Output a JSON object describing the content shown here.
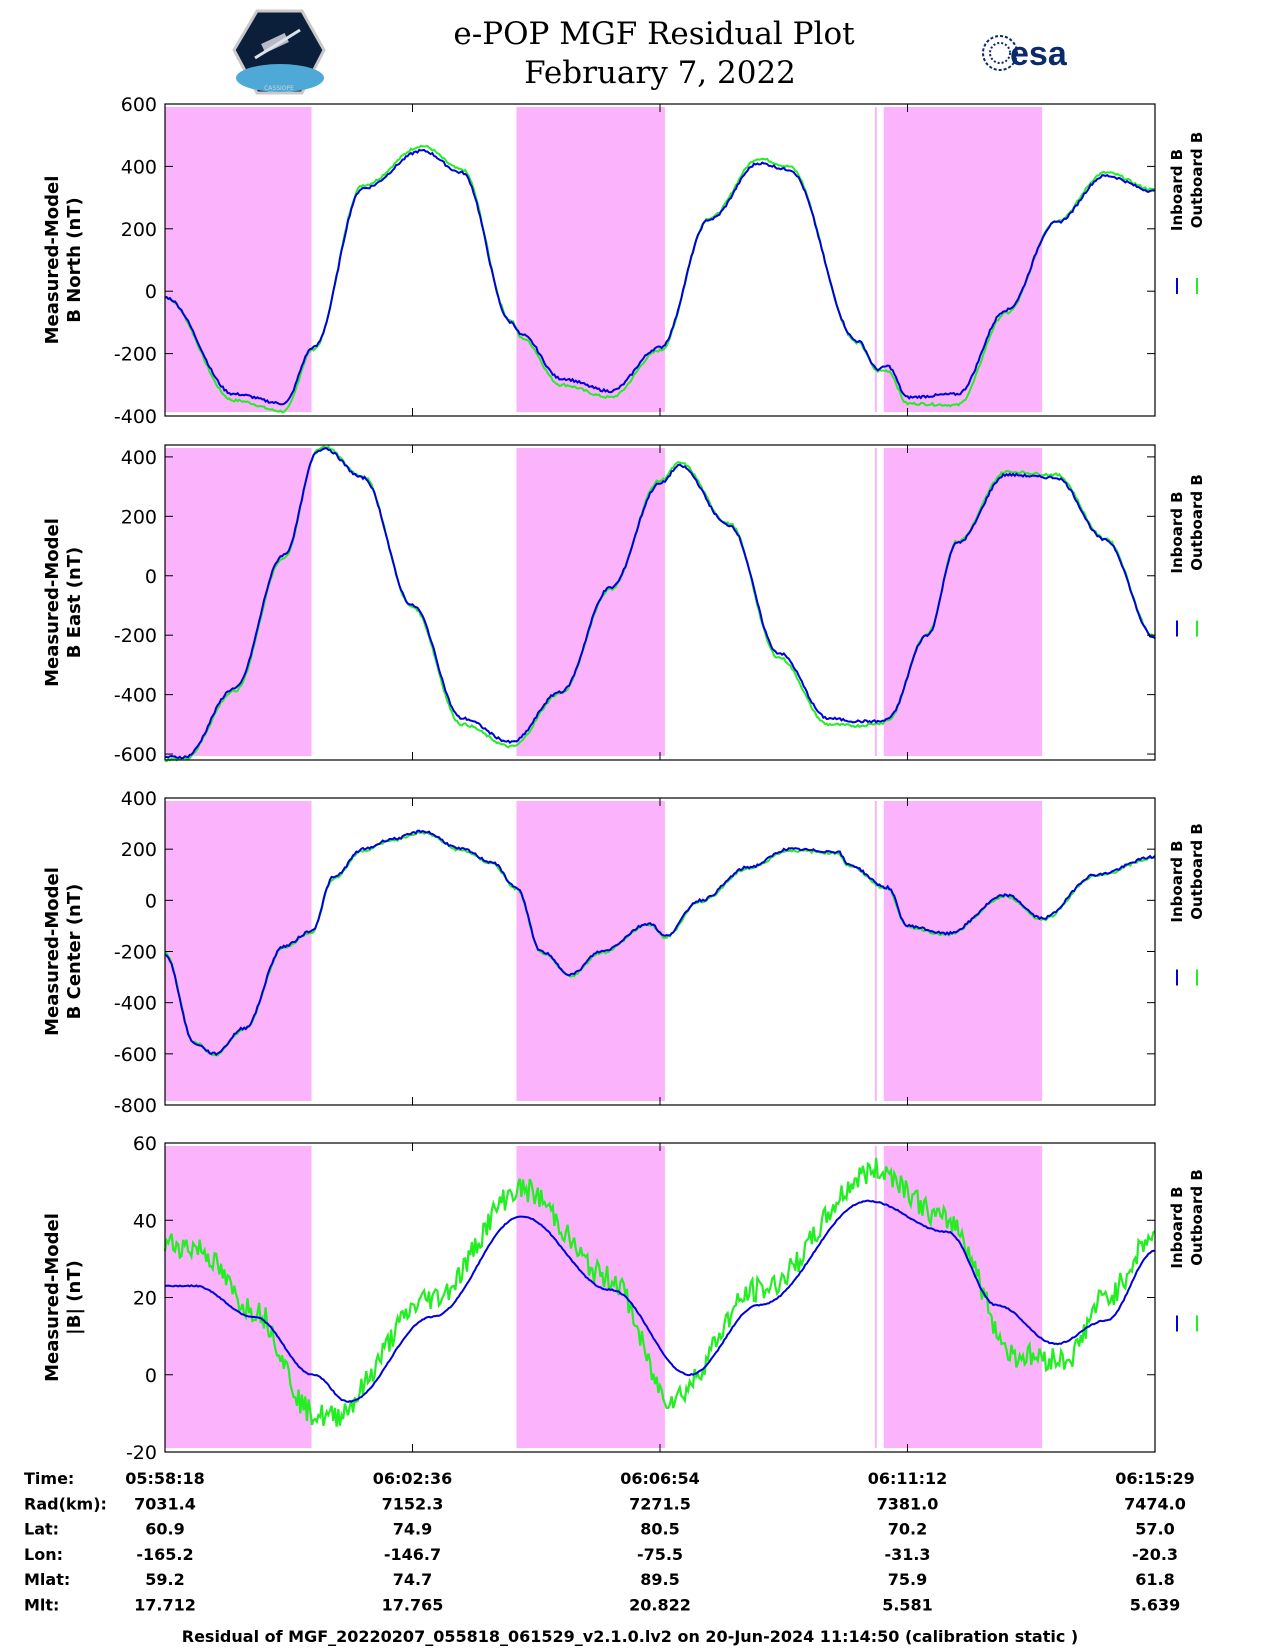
{
  "header": {
    "title_line1": "e-POP MGF Residual Plot",
    "title_line2": "February 7, 2022",
    "left_logo": "cassiope-satellite-logo",
    "left_logo_text": "CASSIOPE",
    "right_logo_text": "esa"
  },
  "colors": {
    "inboard": "#0000dd",
    "outboard": "#22ee22",
    "shade": "#fbb4fb"
  },
  "legend": {
    "inboard": "Inboard B",
    "outboard": "Outboard B"
  },
  "chart_data": [
    {
      "type": "line",
      "ylabel_line1": "Measured-Model",
      "ylabel_line2": "B North (nT)",
      "ylim": [
        -400,
        600
      ],
      "yticks": [
        "600",
        "400",
        "200",
        "0",
        "-200",
        "-400"
      ],
      "series": [
        {
          "name": "Inboard B",
          "x": [
            0,
            0.07,
            0.12,
            0.15,
            0.2,
            0.26,
            0.3,
            0.35,
            0.36,
            0.4,
            0.45,
            0.5,
            0.55,
            0.6,
            0.63,
            0.7,
            0.72,
            0.73,
            0.75,
            0.8,
            0.85,
            0.9,
            0.95,
            1.0
          ],
          "values": [
            -20,
            -330,
            -360,
            -180,
            330,
            450,
            380,
            -100,
            -140,
            -280,
            -320,
            -180,
            230,
            410,
            390,
            -160,
            -250,
            -240,
            -340,
            -330,
            -60,
            220,
            370,
            320
          ]
        },
        {
          "name": "Outboard B",
          "x": [
            0,
            0.07,
            0.12,
            0.15,
            0.2,
            0.26,
            0.3,
            0.35,
            0.36,
            0.4,
            0.45,
            0.5,
            0.55,
            0.6,
            0.63,
            0.7,
            0.72,
            0.73,
            0.75,
            0.8,
            0.85,
            0.9,
            0.95,
            1.0
          ],
          "values": [
            -20,
            -350,
            -385,
            -185,
            340,
            465,
            390,
            -95,
            -150,
            -300,
            -340,
            -190,
            235,
            425,
            400,
            -165,
            -255,
            -255,
            -360,
            -365,
            -70,
            225,
            380,
            325
          ]
        }
      ],
      "shaded_x_ranges": [
        [
          0,
          0.148
        ],
        [
          0.355,
          0.505
        ],
        [
          0.717,
          0.719
        ],
        [
          0.726,
          0.886
        ]
      ]
    },
    {
      "type": "line",
      "ylabel_line1": "Measured-Model",
      "ylabel_line2": "B East (nT)",
      "ylim": [
        -620,
        440
      ],
      "yticks": [
        "400",
        "200",
        "0",
        "-200",
        "-400",
        "-600"
      ],
      "series": [
        {
          "name": "Inboard B",
          "x": [
            0,
            0.02,
            0.07,
            0.12,
            0.155,
            0.16,
            0.2,
            0.25,
            0.3,
            0.35,
            0.4,
            0.45,
            0.5,
            0.52,
            0.57,
            0.62,
            0.67,
            0.7,
            0.725,
            0.73,
            0.77,
            0.8,
            0.85,
            0.9,
            0.95,
            1.0
          ],
          "values": [
            -610,
            -610,
            -380,
            70,
            420,
            430,
            330,
            -100,
            -480,
            -560,
            -390,
            -40,
            310,
            370,
            170,
            -260,
            -480,
            -490,
            -490,
            -480,
            -200,
            110,
            340,
            330,
            120,
            -210
          ]
        },
        {
          "name": "Outboard B",
          "x": [
            0,
            0.02,
            0.07,
            0.12,
            0.155,
            0.16,
            0.2,
            0.25,
            0.3,
            0.35,
            0.4,
            0.45,
            0.5,
            0.52,
            0.57,
            0.62,
            0.67,
            0.7,
            0.725,
            0.73,
            0.77,
            0.8,
            0.85,
            0.9,
            0.95,
            1.0
          ],
          "values": [
            -620,
            -615,
            -390,
            60,
            425,
            435,
            335,
            -105,
            -500,
            -575,
            -395,
            -45,
            320,
            380,
            175,
            -275,
            -500,
            -505,
            -495,
            -485,
            -195,
            115,
            350,
            340,
            125,
            -205
          ]
        }
      ],
      "shaded_x_ranges": [
        [
          0,
          0.148
        ],
        [
          0.355,
          0.505
        ],
        [
          0.717,
          0.719
        ],
        [
          0.726,
          0.886
        ]
      ]
    },
    {
      "type": "line",
      "ylabel_line1": "Measured-Model",
      "ylabel_line2": "B Center (nT)",
      "ylim": [
        -800,
        400
      ],
      "yticks": [
        "400",
        "200",
        "0",
        "-200",
        "-400",
        "-600",
        "-800"
      ],
      "series": [
        {
          "name": "Inboard B",
          "x": [
            0,
            0.03,
            0.05,
            0.08,
            0.12,
            0.148,
            0.17,
            0.2,
            0.23,
            0.26,
            0.3,
            0.33,
            0.355,
            0.38,
            0.41,
            0.44,
            0.49,
            0.505,
            0.54,
            0.59,
            0.63,
            0.68,
            0.69,
            0.73,
            0.75,
            0.79,
            0.85,
            0.886,
            0.94,
            1.0
          ],
          "values": [
            -210,
            -560,
            -600,
            -500,
            -180,
            -120,
            90,
            200,
            240,
            270,
            200,
            150,
            50,
            -200,
            -290,
            -200,
            -90,
            -140,
            0,
            130,
            200,
            190,
            140,
            50,
            -100,
            -130,
            20,
            -70,
            100,
            170
          ]
        },
        {
          "name": "Outboard B",
          "x": [
            0,
            0.03,
            0.05,
            0.08,
            0.12,
            0.148,
            0.17,
            0.2,
            0.23,
            0.26,
            0.3,
            0.33,
            0.355,
            0.38,
            0.41,
            0.44,
            0.49,
            0.505,
            0.54,
            0.59,
            0.63,
            0.68,
            0.69,
            0.73,
            0.75,
            0.79,
            0.85,
            0.886,
            0.94,
            1.0
          ],
          "values": [
            -205,
            -555,
            -605,
            -505,
            -185,
            -125,
            85,
            195,
            235,
            265,
            195,
            145,
            45,
            -205,
            -295,
            -205,
            -95,
            -145,
            -5,
            125,
            195,
            185,
            135,
            45,
            -105,
            -135,
            15,
            -75,
            95,
            165
          ]
        }
      ],
      "shaded_x_ranges": [
        [
          0,
          0.148
        ],
        [
          0.355,
          0.505
        ],
        [
          0.717,
          0.719
        ],
        [
          0.726,
          0.886
        ]
      ]
    },
    {
      "type": "line",
      "ylabel_line1": "Measured-Model",
      "ylabel_line2": "|B| (nT)",
      "ylim": [
        -20,
        60
      ],
      "yticks": [
        "60",
        "40",
        "20",
        "0",
        "-20"
      ],
      "series": [
        {
          "name": "Inboard B",
          "x": [
            0,
            0.03,
            0.09,
            0.15,
            0.185,
            0.27,
            0.36,
            0.45,
            0.53,
            0.6,
            0.71,
            0.79,
            0.84,
            0.9,
            0.95,
            1.0
          ],
          "values": [
            23,
            23,
            15,
            0,
            -7,
            15,
            41,
            22,
            0,
            18,
            45,
            37,
            18,
            8,
            14,
            32
          ]
        },
        {
          "name": "Outboard B",
          "x": [
            0,
            0.03,
            0.09,
            0.15,
            0.165,
            0.27,
            0.36,
            0.45,
            0.51,
            0.6,
            0.72,
            0.79,
            0.86,
            0.91,
            0.95,
            1.0
          ],
          "values": [
            34,
            33,
            17,
            -10,
            -11,
            20,
            48,
            25,
            -6,
            22,
            53,
            40,
            5,
            4,
            20,
            36
          ]
        }
      ],
      "shaded_x_ranges": [
        [
          0,
          0.148
        ],
        [
          0.355,
          0.505
        ],
        [
          0.717,
          0.719
        ],
        [
          0.726,
          0.886
        ]
      ]
    }
  ],
  "table": {
    "labels": [
      "Time:",
      "Rad(km):",
      "Lat:",
      "Lon:",
      "Mlat:",
      "Mlt:"
    ],
    "columns": [
      [
        "05:58:18",
        "7031.4",
        "60.9",
        "-165.2",
        "59.2",
        "17.712"
      ],
      [
        "06:02:36",
        "7152.3",
        "74.9",
        "-146.7",
        "74.7",
        "17.765"
      ],
      [
        "06:06:54",
        "7271.5",
        "80.5",
        "-75.5",
        "89.5",
        "20.822"
      ],
      [
        "06:11:12",
        "7381.0",
        "70.2",
        "-31.3",
        "75.9",
        "5.581"
      ],
      [
        "06:15:29",
        "7474.0",
        "57.0",
        "-20.3",
        "61.8",
        "5.639"
      ]
    ]
  },
  "footer": "Residual of MGF_20220207_055818_061529_v2.1.0.lv2 on 20-Jun-2024 11:14:50 (calibration static )"
}
